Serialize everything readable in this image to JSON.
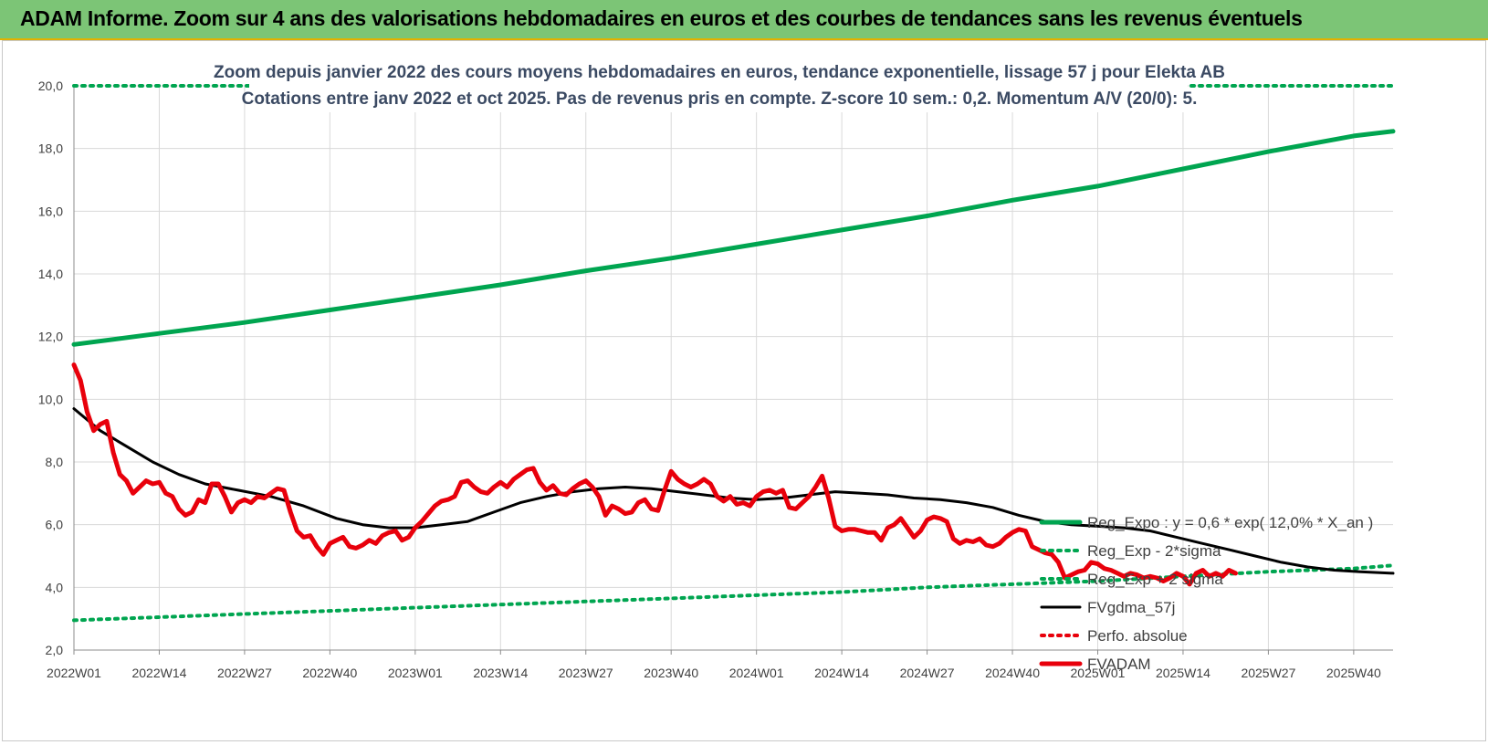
{
  "header": {
    "title": "ADAM Informe. Zoom sur 4 ans des valorisations hebdomadaires en euros et des courbes de tendances sans les revenus éventuels"
  },
  "colors": {
    "header_bg": "#7cc576",
    "regression": "#00a550",
    "price": "#e8000b",
    "smoothing": "#000000",
    "perf": "#e8000b",
    "grid": "#d9d9d9"
  },
  "chart_data": {
    "type": "line",
    "title": "Zoom depuis janvier 2022 des cours moyens hebdomadaires en euros, tendance exponentielle, lissage 57 j pour Elekta AB",
    "subtitle": "Cotations entre janv 2022 et oct 2025. Pas de revenus pris en compte. Z-score 10 sem.: 0,2. Momentum A/V (20/0): 5.",
    "xlabel": "",
    "ylabel": "",
    "ylim": [
      2,
      20
    ],
    "y_ticks": [
      "2,0",
      "4,0",
      "6,0",
      "8,0",
      "10,0",
      "12,0",
      "14,0",
      "16,0",
      "18,0",
      "20,0"
    ],
    "x_ticks": [
      "2022W01",
      "2022W14",
      "2022W27",
      "2022W40",
      "2023W01",
      "2023W14",
      "2023W27",
      "2023W40",
      "2024W01",
      "2024W14",
      "2024W27",
      "2024W40",
      "2025W01",
      "2025W14",
      "2025W27",
      "2025W40"
    ],
    "grid": true,
    "legend_position": "right",
    "series": [
      {
        "name": "Reg_Expo : y = 0,6 * exp( 12,0% * X_an )",
        "style": "solid",
        "color": "#00a550",
        "points": [
          [
            0,
            11.75
          ],
          [
            13,
            12.1
          ],
          [
            26,
            12.45
          ],
          [
            39,
            12.85
          ],
          [
            52,
            13.25
          ],
          [
            65,
            13.65
          ],
          [
            78,
            14.1
          ],
          [
            91,
            14.5
          ],
          [
            104,
            14.95
          ],
          [
            117,
            15.4
          ],
          [
            130,
            15.85
          ],
          [
            143,
            16.35
          ],
          [
            156,
            16.8
          ],
          [
            169,
            17.35
          ],
          [
            182,
            17.9
          ],
          [
            195,
            18.4
          ],
          [
            201,
            18.55
          ]
        ]
      },
      {
        "name": "Reg_Exp - 2*sigma",
        "style": "dotted",
        "color": "#00a550",
        "points": [
          [
            0,
            2.95
          ],
          [
            13,
            3.05
          ],
          [
            26,
            3.15
          ],
          [
            39,
            3.25
          ],
          [
            52,
            3.35
          ],
          [
            65,
            3.45
          ],
          [
            78,
            3.55
          ],
          [
            91,
            3.65
          ],
          [
            104,
            3.75
          ],
          [
            117,
            3.85
          ],
          [
            130,
            4.0
          ],
          [
            143,
            4.1
          ],
          [
            156,
            4.2
          ],
          [
            169,
            4.35
          ],
          [
            182,
            4.5
          ],
          [
            195,
            4.6
          ],
          [
            201,
            4.7
          ]
        ]
      },
      {
        "name": "Reg_Exp + 2 sigma",
        "style": "dotted",
        "color": "#00a550",
        "points": [
          [
            0,
            20.0
          ],
          [
            201,
            20.0
          ]
        ]
      },
      {
        "name": "FVgdma_57j",
        "style": "solid",
        "color": "#000000",
        "points": [
          [
            0,
            9.7
          ],
          [
            4,
            9.0
          ],
          [
            8,
            8.5
          ],
          [
            12,
            8.0
          ],
          [
            16,
            7.6
          ],
          [
            20,
            7.3
          ],
          [
            25,
            7.1
          ],
          [
            30,
            6.9
          ],
          [
            35,
            6.6
          ],
          [
            40,
            6.2
          ],
          [
            44,
            6.0
          ],
          [
            48,
            5.9
          ],
          [
            52,
            5.9
          ],
          [
            56,
            6.0
          ],
          [
            60,
            6.1
          ],
          [
            64,
            6.4
          ],
          [
            68,
            6.7
          ],
          [
            72,
            6.9
          ],
          [
            76,
            7.05
          ],
          [
            80,
            7.15
          ],
          [
            84,
            7.2
          ],
          [
            88,
            7.15
          ],
          [
            92,
            7.05
          ],
          [
            96,
            6.95
          ],
          [
            100,
            6.85
          ],
          [
            104,
            6.8
          ],
          [
            108,
            6.85
          ],
          [
            112,
            6.95
          ],
          [
            116,
            7.05
          ],
          [
            120,
            7.0
          ],
          [
            124,
            6.95
          ],
          [
            128,
            6.85
          ],
          [
            132,
            6.8
          ],
          [
            136,
            6.7
          ],
          [
            140,
            6.55
          ],
          [
            144,
            6.3
          ],
          [
            148,
            6.1
          ],
          [
            152,
            6.0
          ],
          [
            156,
            5.95
          ],
          [
            160,
            5.9
          ],
          [
            164,
            5.8
          ],
          [
            168,
            5.6
          ],
          [
            172,
            5.4
          ],
          [
            176,
            5.2
          ],
          [
            180,
            5.0
          ],
          [
            184,
            4.8
          ],
          [
            188,
            4.65
          ],
          [
            192,
            4.55
          ],
          [
            196,
            4.5
          ],
          [
            201,
            4.45
          ]
        ]
      },
      {
        "name": "Perfo. absolue",
        "style": "dotted",
        "color": "#e8000b",
        "points": []
      },
      {
        "name": "FVADAM",
        "style": "solid",
        "color": "#e8000b",
        "points": [
          [
            0,
            11.1
          ],
          [
            1,
            10.6
          ],
          [
            2,
            9.6
          ],
          [
            3,
            9.0
          ],
          [
            4,
            9.2
          ],
          [
            5,
            9.3
          ],
          [
            6,
            8.3
          ],
          [
            7,
            7.6
          ],
          [
            8,
            7.4
          ],
          [
            9,
            7.0
          ],
          [
            10,
            7.2
          ],
          [
            11,
            7.4
          ],
          [
            12,
            7.3
          ],
          [
            13,
            7.35
          ],
          [
            14,
            7.0
          ],
          [
            15,
            6.9
          ],
          [
            16,
            6.5
          ],
          [
            17,
            6.3
          ],
          [
            18,
            6.4
          ],
          [
            19,
            6.8
          ],
          [
            20,
            6.7
          ],
          [
            21,
            7.3
          ],
          [
            22,
            7.3
          ],
          [
            23,
            6.9
          ],
          [
            24,
            6.4
          ],
          [
            25,
            6.7
          ],
          [
            26,
            6.8
          ],
          [
            27,
            6.7
          ],
          [
            28,
            6.9
          ],
          [
            29,
            6.85
          ],
          [
            30,
            7.0
          ],
          [
            31,
            7.15
          ],
          [
            32,
            7.1
          ],
          [
            33,
            6.4
          ],
          [
            34,
            5.8
          ],
          [
            35,
            5.6
          ],
          [
            36,
            5.65
          ],
          [
            37,
            5.3
          ],
          [
            38,
            5.05
          ],
          [
            39,
            5.4
          ],
          [
            40,
            5.5
          ],
          [
            41,
            5.6
          ],
          [
            42,
            5.3
          ],
          [
            43,
            5.25
          ],
          [
            44,
            5.35
          ],
          [
            45,
            5.5
          ],
          [
            46,
            5.4
          ],
          [
            47,
            5.65
          ],
          [
            48,
            5.75
          ],
          [
            49,
            5.8
          ],
          [
            50,
            5.5
          ],
          [
            51,
            5.6
          ],
          [
            52,
            5.9
          ],
          [
            53,
            6.1
          ],
          [
            54,
            6.35
          ],
          [
            55,
            6.6
          ],
          [
            56,
            6.75
          ],
          [
            57,
            6.8
          ],
          [
            58,
            6.9
          ],
          [
            59,
            7.35
          ],
          [
            60,
            7.4
          ],
          [
            61,
            7.2
          ],
          [
            62,
            7.05
          ],
          [
            63,
            7.0
          ],
          [
            64,
            7.2
          ],
          [
            65,
            7.35
          ],
          [
            66,
            7.2
          ],
          [
            67,
            7.45
          ],
          [
            68,
            7.6
          ],
          [
            69,
            7.75
          ],
          [
            70,
            7.8
          ],
          [
            71,
            7.35
          ],
          [
            72,
            7.1
          ],
          [
            73,
            7.25
          ],
          [
            74,
            7.0
          ],
          [
            75,
            6.95
          ],
          [
            76,
            7.15
          ],
          [
            77,
            7.3
          ],
          [
            78,
            7.4
          ],
          [
            79,
            7.2
          ],
          [
            80,
            6.9
          ],
          [
            81,
            6.3
          ],
          [
            82,
            6.6
          ],
          [
            83,
            6.5
          ],
          [
            84,
            6.35
          ],
          [
            85,
            6.4
          ],
          [
            86,
            6.7
          ],
          [
            87,
            6.8
          ],
          [
            88,
            6.5
          ],
          [
            89,
            6.45
          ],
          [
            90,
            7.1
          ],
          [
            91,
            7.7
          ],
          [
            92,
            7.45
          ],
          [
            93,
            7.3
          ],
          [
            94,
            7.2
          ],
          [
            95,
            7.3
          ],
          [
            96,
            7.45
          ],
          [
            97,
            7.3
          ],
          [
            98,
            6.9
          ],
          [
            99,
            6.75
          ],
          [
            100,
            6.9
          ],
          [
            101,
            6.65
          ],
          [
            102,
            6.7
          ],
          [
            103,
            6.6
          ],
          [
            104,
            6.9
          ],
          [
            105,
            7.05
          ],
          [
            106,
            7.1
          ],
          [
            107,
            7.0
          ],
          [
            108,
            7.1
          ],
          [
            109,
            6.55
          ],
          [
            110,
            6.5
          ],
          [
            111,
            6.7
          ],
          [
            112,
            6.9
          ],
          [
            113,
            7.2
          ],
          [
            114,
            7.55
          ],
          [
            115,
            6.85
          ],
          [
            116,
            5.95
          ],
          [
            117,
            5.8
          ],
          [
            118,
            5.85
          ],
          [
            119,
            5.85
          ],
          [
            120,
            5.8
          ],
          [
            121,
            5.75
          ],
          [
            122,
            5.75
          ],
          [
            123,
            5.5
          ],
          [
            124,
            5.9
          ],
          [
            125,
            6.0
          ],
          [
            126,
            6.2
          ],
          [
            127,
            5.9
          ],
          [
            128,
            5.6
          ],
          [
            129,
            5.8
          ],
          [
            130,
            6.15
          ],
          [
            131,
            6.25
          ],
          [
            132,
            6.2
          ],
          [
            133,
            6.1
          ],
          [
            134,
            5.55
          ],
          [
            135,
            5.4
          ],
          [
            136,
            5.5
          ],
          [
            137,
            5.45
          ],
          [
            138,
            5.55
          ],
          [
            139,
            5.35
          ],
          [
            140,
            5.3
          ],
          [
            141,
            5.4
          ],
          [
            142,
            5.6
          ],
          [
            143,
            5.75
          ],
          [
            144,
            5.85
          ],
          [
            145,
            5.8
          ],
          [
            146,
            5.3
          ],
          [
            147,
            5.2
          ],
          [
            148,
            5.1
          ],
          [
            149,
            5.05
          ],
          [
            150,
            4.8
          ],
          [
            151,
            4.3
          ],
          [
            152,
            4.4
          ],
          [
            153,
            4.5
          ],
          [
            154,
            4.55
          ],
          [
            155,
            4.8
          ],
          [
            156,
            4.75
          ],
          [
            157,
            4.6
          ],
          [
            158,
            4.55
          ],
          [
            159,
            4.45
          ],
          [
            160,
            4.35
          ],
          [
            161,
            4.45
          ],
          [
            162,
            4.4
          ],
          [
            163,
            4.3
          ],
          [
            164,
            4.35
          ],
          [
            165,
            4.3
          ],
          [
            166,
            4.2
          ],
          [
            167,
            4.3
          ],
          [
            168,
            4.45
          ],
          [
            169,
            4.35
          ],
          [
            170,
            4.1
          ],
          [
            171,
            4.45
          ],
          [
            172,
            4.55
          ],
          [
            173,
            4.35
          ],
          [
            174,
            4.45
          ],
          [
            175,
            4.35
          ],
          [
            176,
            4.55
          ],
          [
            177,
            4.45
          ]
        ]
      }
    ]
  }
}
